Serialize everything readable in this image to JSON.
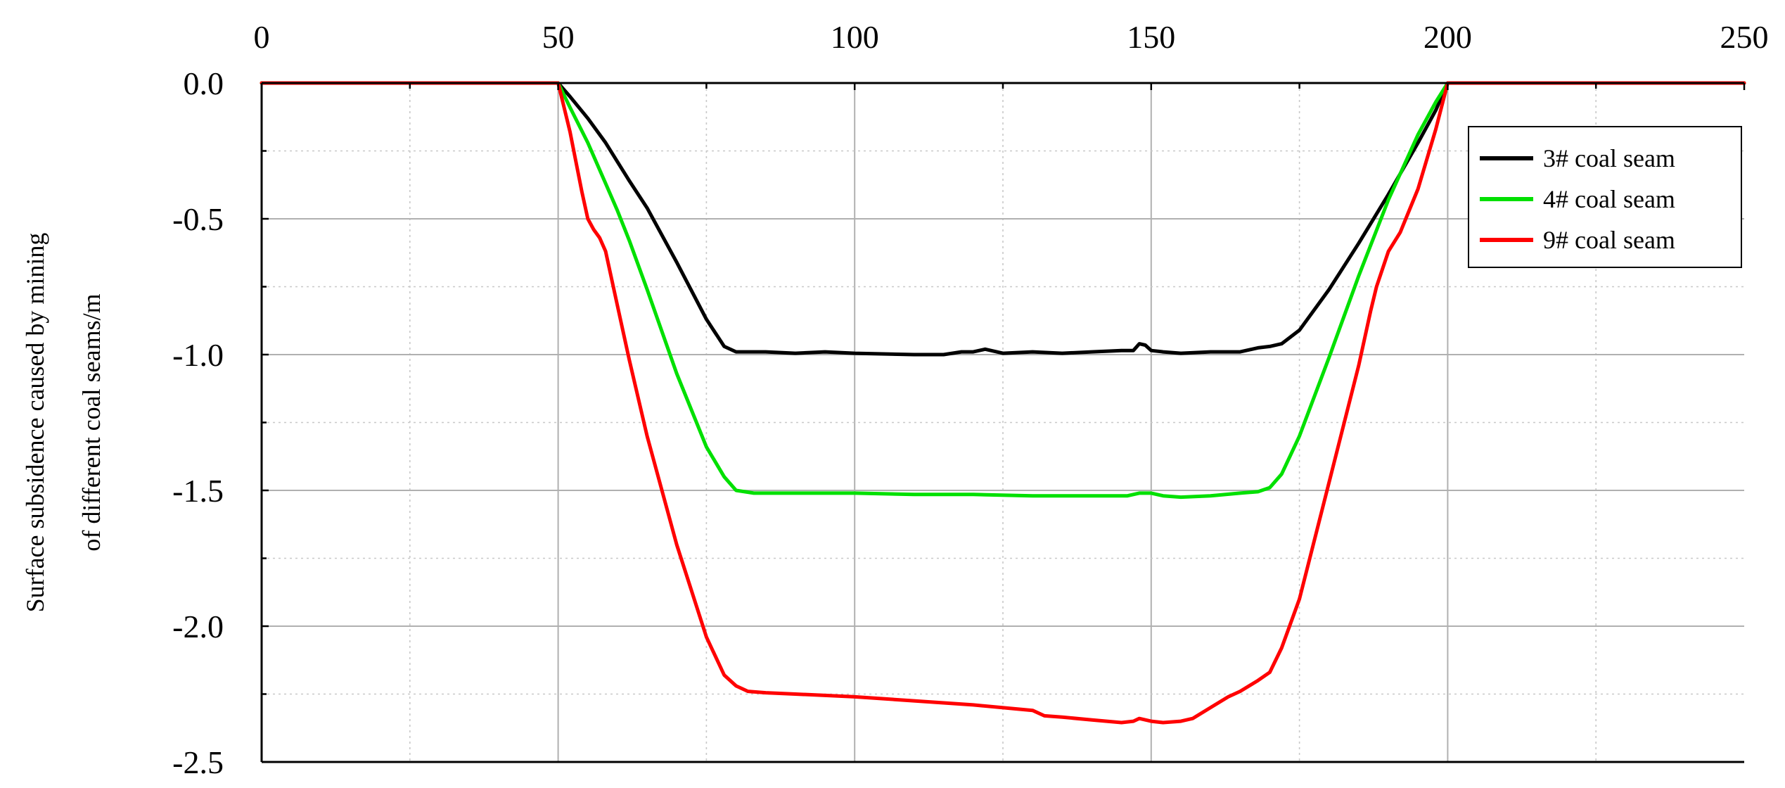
{
  "chart_data": {
    "type": "line",
    "title": "",
    "xlabel": "",
    "ylabel_lines": [
      "Surface subsidence caused by mining",
      "of different coal seams/m"
    ],
    "xlim": [
      0,
      250
    ],
    "ylim": [
      -2.5,
      0.0
    ],
    "x_ticks": [
      0,
      50,
      100,
      150,
      200,
      250
    ],
    "x_tick_labels": [
      "0",
      "50",
      "100",
      "150",
      "200",
      "250"
    ],
    "y_ticks": [
      0.0,
      -0.5,
      -1.0,
      -1.5,
      -2.0,
      -2.5
    ],
    "y_tick_labels": [
      "0.0",
      "-0.5",
      "-1.0",
      "-1.5",
      "-2.0",
      "-2.5"
    ],
    "x_axis_position": "top",
    "grid": true,
    "legend_position": "top-right",
    "series": [
      {
        "name": "3# coal seam",
        "color": "#000000",
        "x": [
          0,
          50,
          52,
          55,
          58,
          60,
          62,
          65,
          70,
          75,
          78,
          80,
          85,
          90,
          95,
          100,
          110,
          115,
          118,
          120,
          122,
          125,
          130,
          135,
          140,
          145,
          147,
          148,
          149,
          150,
          152,
          155,
          160,
          165,
          168,
          170,
          172,
          175,
          180,
          185,
          190,
          195,
          198,
          200,
          250
        ],
        "y": [
          0,
          0,
          -0.05,
          -0.13,
          -0.22,
          -0.29,
          -0.36,
          -0.46,
          -0.66,
          -0.87,
          -0.97,
          -0.99,
          -0.99,
          -0.995,
          -0.99,
          -0.995,
          -1.0,
          -1.0,
          -0.99,
          -0.99,
          -0.98,
          -0.995,
          -0.99,
          -0.995,
          -0.99,
          -0.985,
          -0.985,
          -0.96,
          -0.965,
          -0.985,
          -0.99,
          -0.995,
          -0.99,
          -0.99,
          -0.975,
          -0.97,
          -0.96,
          -0.91,
          -0.76,
          -0.59,
          -0.41,
          -0.22,
          -0.1,
          0,
          0
        ]
      },
      {
        "name": "4# coal seam",
        "color": "#00e000",
        "x": [
          0,
          50,
          52,
          55,
          58,
          60,
          62,
          65,
          70,
          75,
          78,
          80,
          83,
          90,
          100,
          110,
          120,
          130,
          140,
          146,
          148,
          150,
          152,
          155,
          160,
          165,
          168,
          170,
          172,
          175,
          180,
          185,
          190,
          195,
          198,
          200,
          250
        ],
        "y": [
          0,
          0,
          -0.09,
          -0.22,
          -0.37,
          -0.47,
          -0.58,
          -0.76,
          -1.07,
          -1.34,
          -1.45,
          -1.5,
          -1.51,
          -1.51,
          -1.51,
          -1.515,
          -1.515,
          -1.52,
          -1.52,
          -1.52,
          -1.51,
          -1.51,
          -1.52,
          -1.525,
          -1.52,
          -1.51,
          -1.505,
          -1.49,
          -1.44,
          -1.3,
          -1.01,
          -0.71,
          -0.43,
          -0.19,
          -0.07,
          0,
          0
        ]
      },
      {
        "name": "9# coal seam",
        "color": "#ff0000",
        "x": [
          0,
          50,
          52,
          54,
          55,
          56,
          57,
          58,
          60,
          62,
          65,
          70,
          75,
          78,
          80,
          82,
          85,
          90,
          95,
          100,
          110,
          120,
          130,
          132,
          135,
          140,
          145,
          147,
          148,
          150,
          152,
          155,
          157,
          160,
          163,
          165,
          168,
          170,
          172,
          175,
          180,
          185,
          187,
          188,
          190,
          192,
          195,
          198,
          200,
          250
        ],
        "y": [
          0,
          0,
          -0.18,
          -0.4,
          -0.5,
          -0.54,
          -0.57,
          -0.62,
          -0.82,
          -1.02,
          -1.3,
          -1.7,
          -2.04,
          -2.18,
          -2.22,
          -2.24,
          -2.245,
          -2.25,
          -2.255,
          -2.26,
          -2.275,
          -2.29,
          -2.31,
          -2.33,
          -2.335,
          -2.345,
          -2.355,
          -2.35,
          -2.34,
          -2.35,
          -2.355,
          -2.35,
          -2.34,
          -2.3,
          -2.26,
          -2.24,
          -2.2,
          -2.17,
          -2.08,
          -1.9,
          -1.47,
          -1.04,
          -0.84,
          -0.75,
          -0.62,
          -0.55,
          -0.39,
          -0.17,
          0,
          0
        ]
      }
    ]
  }
}
